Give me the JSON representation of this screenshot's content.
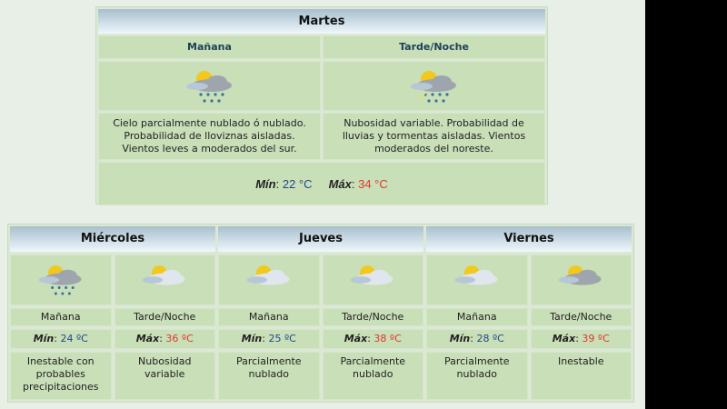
{
  "today": {
    "day": "Martes",
    "periods": [
      {
        "label": "Mañana",
        "icon": "sun-cloud-rain-icon",
        "desc": "Cielo parcialmente nublado ó nublado. Probabilidad de lloviznas aisladas. Vientos leves a moderados del sur."
      },
      {
        "label": "Tarde/Noche",
        "icon": "sun-cloud-storm-icon",
        "desc": "Nubosidad variable. Probabilidad de lluvias y tormentas aisladas. Vientos moderados del noreste."
      }
    ],
    "min_label": "Mín",
    "min": "22 °C",
    "max_label": "Máx",
    "max": "34 °C"
  },
  "days": [
    {
      "day": "Miércoles",
      "periods": [
        {
          "label": "Mañana",
          "icon": "sun-cloud-rain-icon",
          "temp_label": "Mín",
          "temp": "24 ºC",
          "type": "min",
          "desc": "Inestable con probables precipitaciones"
        },
        {
          "label": "Tarde/Noche",
          "icon": "sun-cloud-icon",
          "temp_label": "Máx",
          "temp": "36 ºC",
          "type": "max",
          "desc": "Nubosidad variable"
        }
      ]
    },
    {
      "day": "Jueves",
      "periods": [
        {
          "label": "Mañana",
          "icon": "sun-cloud-icon",
          "temp_label": "Mín",
          "temp": "25 ºC",
          "type": "min",
          "desc": "Parcialmente nublado"
        },
        {
          "label": "Tarde/Noche",
          "icon": "sun-cloud-icon",
          "temp_label": "Máx",
          "temp": "38 ºC",
          "type": "max",
          "desc": "Parcialmente nublado"
        }
      ]
    },
    {
      "day": "Viernes",
      "periods": [
        {
          "label": "Mañana",
          "icon": "sun-cloud-icon",
          "temp_label": "Mín",
          "temp": "28 ºC",
          "type": "min",
          "desc": "Parcialmente nublado"
        },
        {
          "label": "Tarde/Noche",
          "icon": "sun-cloud-gray-icon",
          "temp_label": "Máx",
          "temp": "39 ºC",
          "type": "max",
          "desc": "Inestable"
        }
      ]
    }
  ],
  "colors": {
    "min": "#24468a",
    "max": "#e0372a",
    "cell": "#c8dfb8"
  }
}
